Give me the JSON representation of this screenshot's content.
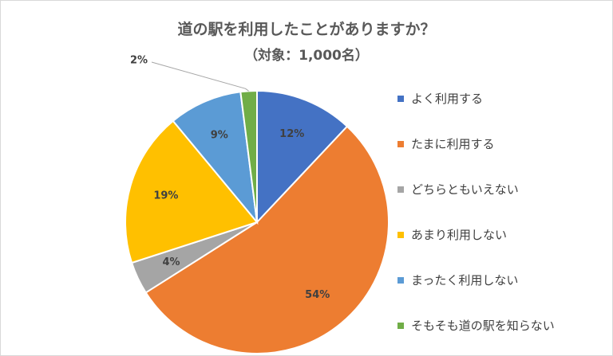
{
  "chart_data": {
    "type": "pie",
    "title": "道の駅を利用したことがありますか？",
    "subtitle": "（対象：1,000名）",
    "legend_position": "right",
    "slices": [
      {
        "label": "よく利用する",
        "value": 12,
        "display": "12%",
        "color": "#4472C4"
      },
      {
        "label": "たまに利用する",
        "value": 54,
        "display": "54%",
        "color": "#ED7D31"
      },
      {
        "label": "どちらともいえない",
        "value": 4,
        "display": "4%",
        "color": "#A5A5A5"
      },
      {
        "label": "あまり利用しない",
        "value": 19,
        "display": "19%",
        "color": "#FFC000"
      },
      {
        "label": "まったく利用しない",
        "value": 9,
        "display": "9%",
        "color": "#5B9BD5"
      },
      {
        "label": "そもそも道の駅を知らない",
        "value": 2,
        "display": "2%",
        "color": "#70AD47"
      }
    ]
  }
}
